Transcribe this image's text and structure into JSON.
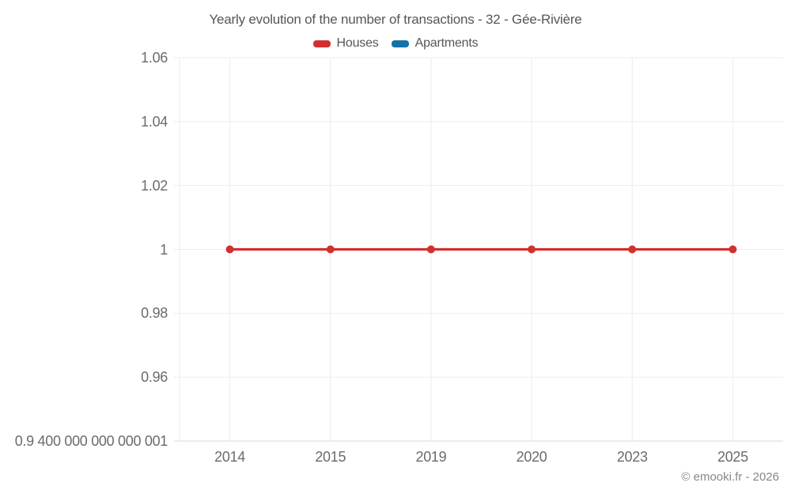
{
  "title": "Yearly evolution of the number of transactions - 32 - Gée-Rivière",
  "watermark": "© emooki.fr - 2026",
  "chart_data": {
    "type": "line",
    "title": "Yearly evolution of the number of transactions - 32 - Gée-Rivière",
    "categories": [
      "2014",
      "2015",
      "2019",
      "2020",
      "2023",
      "2025"
    ],
    "series": [
      {
        "name": "Houses",
        "color": "#d32f2f",
        "values": [
          1,
          1,
          1,
          1,
          1,
          1
        ]
      },
      {
        "name": "Apartments",
        "color": "#1572a5",
        "values": []
      }
    ],
    "y_ticks": [
      {
        "value": 1.06,
        "label": "1.06"
      },
      {
        "value": 1.04,
        "label": "1.04"
      },
      {
        "value": 1.02,
        "label": "1.02"
      },
      {
        "value": 1.0,
        "label": "1"
      },
      {
        "value": 0.98,
        "label": "0.98"
      },
      {
        "value": 0.96,
        "label": "0.96"
      },
      {
        "value": 0.9400000000000001,
        "label": "0.9 400 000 000 000 001"
      }
    ],
    "ylim": [
      0.9400000000000001,
      1.06
    ],
    "xlabel": "",
    "ylabel": "",
    "grid": true,
    "legend_position": "top",
    "colors": {
      "gridline": "#ececec",
      "axis_line": "#d9d9d9",
      "tick_text": "#6b6b6b",
      "title_text": "#565656",
      "marker_line_width": 3.2,
      "marker_radius": 5
    }
  }
}
